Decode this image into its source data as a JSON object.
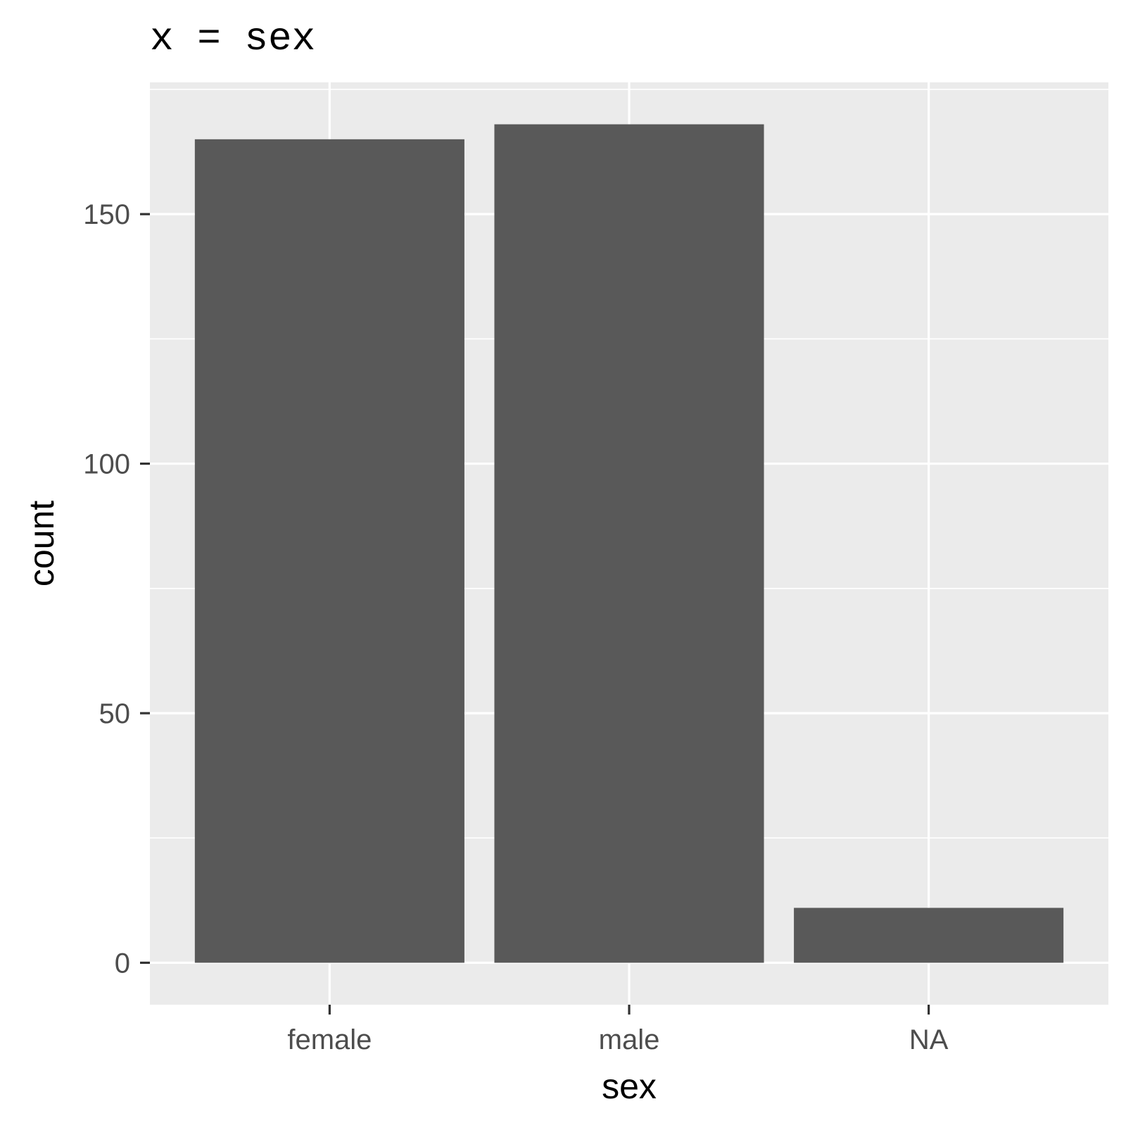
{
  "chart_data": {
    "type": "bar",
    "title": "x = sex",
    "xlabel": "sex",
    "ylabel": "count",
    "categories": [
      "female",
      "male",
      "NA"
    ],
    "values": [
      165,
      168,
      11
    ],
    "ylim": [
      -8.4,
      176.4
    ],
    "yticks": [
      0,
      50,
      100,
      150
    ],
    "ytick_labels": [
      "0",
      "50",
      "100",
      "150"
    ],
    "grid": true,
    "colors": {
      "bar": "#595959",
      "panel": "#ebebeb",
      "grid": "#ffffff",
      "tick": "#333333"
    }
  }
}
